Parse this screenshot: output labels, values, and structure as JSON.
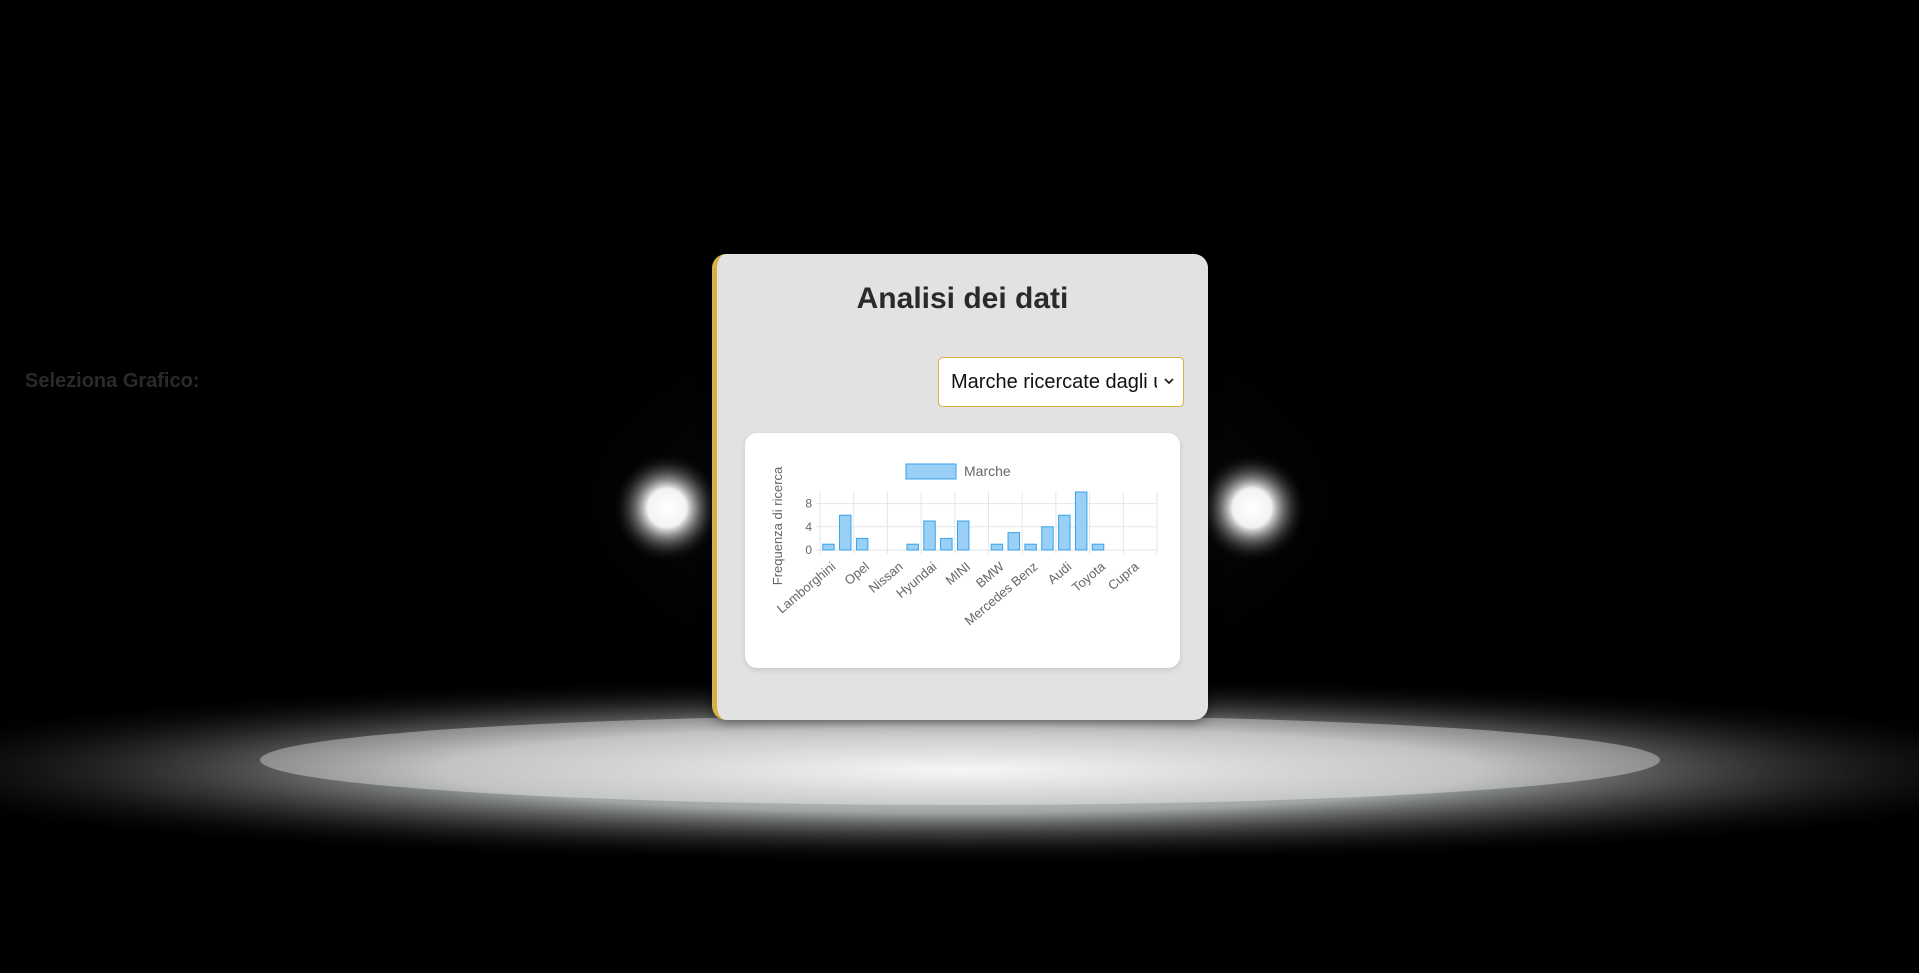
{
  "page": {
    "title": "Analisi dei dati",
    "select_label": "Seleziona Grafico:",
    "select_value": "Marche ricercate dagli utenti"
  },
  "colors": {
    "accent": "#d8b23e",
    "card_bg": "#e2e2e2",
    "bar_fill": "#9ad0f5",
    "bar_stroke": "#36a2eb"
  },
  "icons": [
    "chevron-down-icon"
  ],
  "chart_data": {
    "type": "bar",
    "legend": "Marche",
    "legend_position": "top",
    "ylabel": "Frequenza di ricerca",
    "yticks": [
      0,
      4,
      8
    ],
    "ylim": [
      0,
      10
    ],
    "grid": true,
    "visible_xtick_labels": [
      "Lamborghini",
      "Opel",
      "Nissan",
      "Hyundai",
      "MINI",
      "BMW",
      "Mercedes Benz",
      "Audi",
      "Toyota",
      "Cupra"
    ],
    "series": [
      {
        "name": "Marche",
        "values": [
          1,
          6,
          2,
          0,
          0,
          1,
          5,
          2,
          5,
          0,
          1,
          3,
          1,
          4,
          6,
          10,
          1,
          0,
          0,
          0
        ]
      }
    ]
  }
}
